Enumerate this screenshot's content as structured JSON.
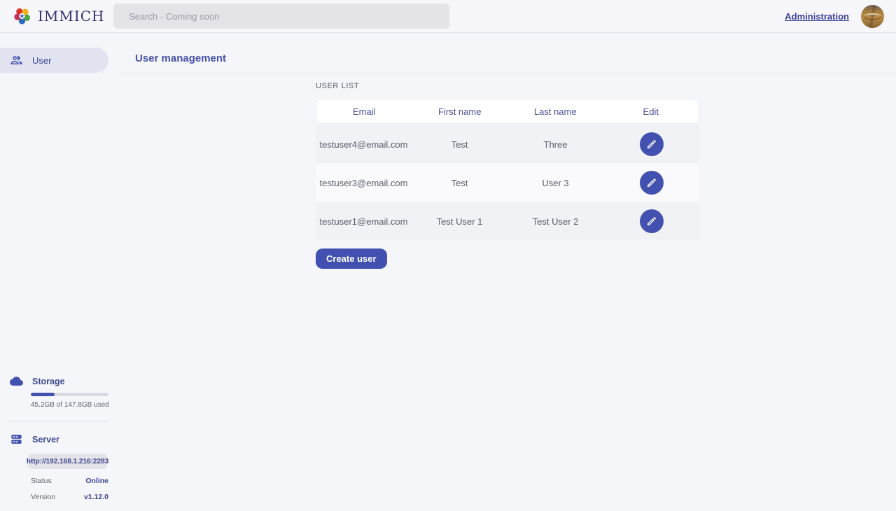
{
  "header": {
    "logo_text": "IMMICH",
    "search": {
      "placeholder": "Search - Coming soon"
    },
    "admin_link": "Administration"
  },
  "sidebar": {
    "items": [
      {
        "label": "User"
      }
    ],
    "storage": {
      "title": "Storage",
      "usage_text": "45.2GB of 147.8GB used",
      "percent_used": 30.6
    },
    "server": {
      "title": "Server",
      "url": "http://192.168.1.216:2283",
      "rows": [
        {
          "label": "Status",
          "value": "Online"
        },
        {
          "label": "Version",
          "value": "v1.12.0"
        }
      ]
    }
  },
  "main": {
    "title": "User management",
    "section_label": "USER LIST",
    "table": {
      "columns": [
        "Email",
        "First name",
        "Last name",
        "Edit"
      ],
      "rows": [
        {
          "email": "testuser4@email.com",
          "first_name": "Test",
          "last_name": "Three"
        },
        {
          "email": "testuser3@email.com",
          "first_name": "Test",
          "last_name": "User 3"
        },
        {
          "email": "testuser1@email.com",
          "first_name": "Test User 1",
          "last_name": "Test User 2"
        }
      ]
    },
    "create_button": "Create user"
  },
  "colors": {
    "primary": "#4250af",
    "accent_text": "#4a5394",
    "row_odd": "#f1f2f6",
    "row_even": "#fafafd"
  }
}
